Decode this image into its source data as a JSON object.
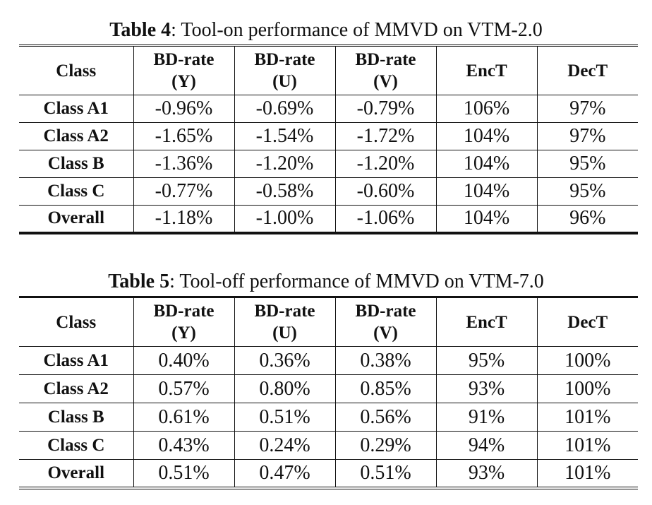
{
  "table4": {
    "caption_label": "Table 4",
    "caption_text": ": Tool-on performance of MMVD on VTM-2.0",
    "headers": [
      "Class",
      "BD-rate",
      "(Y)",
      "BD-rate",
      "(U)",
      "BD-rate",
      "(V)",
      "EncT",
      "DecT"
    ],
    "rows": [
      [
        "Class A1",
        "-0.96%",
        "-0.69%",
        "-0.79%",
        "106%",
        "97%"
      ],
      [
        "Class A2",
        "-1.65%",
        "-1.54%",
        "-1.72%",
        "104%",
        "97%"
      ],
      [
        "Class B",
        "-1.36%",
        "-1.20%",
        "-1.20%",
        "104%",
        "95%"
      ],
      [
        "Class C",
        "-0.77%",
        "-0.58%",
        "-0.60%",
        "104%",
        "95%"
      ],
      [
        "Overall",
        "-1.18%",
        "-1.00%",
        "-1.06%",
        "104%",
        "96%"
      ]
    ]
  },
  "table5": {
    "caption_label": "Table 5",
    "caption_text": ": Tool-off performance of MMVD on VTM-7.0",
    "headers": [
      "Class",
      "BD-rate",
      "(Y)",
      "BD-rate",
      "(U)",
      "BD-rate",
      "(V)",
      "EncT",
      "DecT"
    ],
    "rows": [
      [
        "Class A1",
        "0.40%",
        "0.36%",
        "0.38%",
        "95%",
        "100%"
      ],
      [
        "Class A2",
        "0.57%",
        "0.80%",
        "0.85%",
        "93%",
        "100%"
      ],
      [
        "Class B",
        "0.61%",
        "0.51%",
        "0.56%",
        "91%",
        "101%"
      ],
      [
        "Class C",
        "0.43%",
        "0.24%",
        "0.29%",
        "94%",
        "101%"
      ],
      [
        "Overall",
        "0.51%",
        "0.47%",
        "0.51%",
        "93%",
        "101%"
      ]
    ]
  }
}
